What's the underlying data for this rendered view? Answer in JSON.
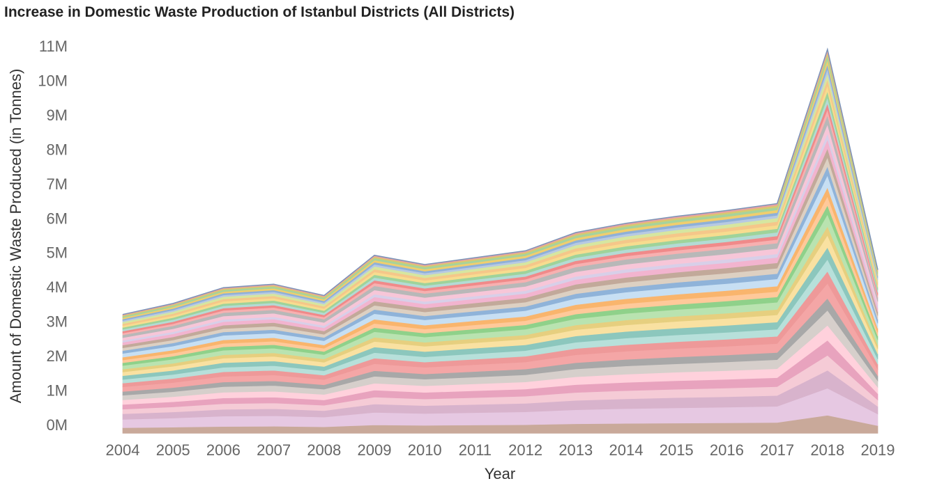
{
  "chart_data": {
    "type": "area",
    "title": "Increase in Domestic Waste Production of Istanbul Districts (All Districts)",
    "xlabel": "Year",
    "ylabel": "Amount of Domestic Waste Produced (in Tonnes)",
    "x": [
      "2004",
      "2005",
      "2006",
      "2007",
      "2008",
      "2009",
      "2010",
      "2011",
      "2012",
      "2013",
      "2014",
      "2015",
      "2016",
      "2017",
      "2018",
      "2019"
    ],
    "y_ticks": [
      "0M",
      "1M",
      "2M",
      "3M",
      "4M",
      "5M",
      "6M",
      "7M",
      "8M",
      "9M",
      "10M",
      "11M"
    ],
    "ylim": [
      -0.3,
      11.3
    ],
    "stacked": true,
    "grid": false,
    "legend": "none",
    "totals_millions": [
      3.2,
      3.52,
      3.98,
      4.08,
      3.75,
      4.92,
      4.65,
      4.85,
      5.05,
      5.58,
      5.85,
      6.05,
      6.22,
      6.42,
      10.9,
      4.5
    ],
    "band_colors": [
      "#c9a99a",
      "#e6c8e2",
      "#d8b3cc",
      "#f5cbd6",
      "#e8a3be",
      "#ffd1dc",
      "#d6cfcb",
      "#a8a8a8",
      "#f4a6a6",
      "#ee9999",
      "#b7e0da",
      "#8cc7bd",
      "#f9e1a1",
      "#e6cf7f",
      "#b9e3b0",
      "#8fd18a",
      "#ffc99a",
      "#f9b56d",
      "#c7dff3",
      "#8fb3d9",
      "#ddd0c2",
      "#c2a99a",
      "#f2b4cf",
      "#d8cfe8",
      "#f7c6d8",
      "#b8b8b8",
      "#f7b0b0",
      "#f08a8a",
      "#b3dbd4",
      "#9fd39a",
      "#f7dc8f",
      "#f5c78a",
      "#d6e6a0",
      "#b7c9e2",
      "#8fb0d8",
      "#f0ce6e",
      "#a7d39c",
      "#d9c96e",
      "#e9a2a2"
    ],
    "band_weights": [
      0.06,
      0.09,
      0.06,
      0.05,
      0.05,
      0.05,
      0.05,
      0.04,
      0.05,
      0.04,
      0.04,
      0.04,
      0.04,
      0.03,
      0.04,
      0.03,
      0.03,
      0.03,
      0.04,
      0.03,
      0.03,
      0.03,
      0.03,
      0.02,
      0.03,
      0.03,
      0.02,
      0.02,
      0.02,
      0.02,
      0.02,
      0.02,
      0.02,
      0.015,
      0.015,
      0.015,
      0.015,
      0.01,
      0.01
    ]
  }
}
